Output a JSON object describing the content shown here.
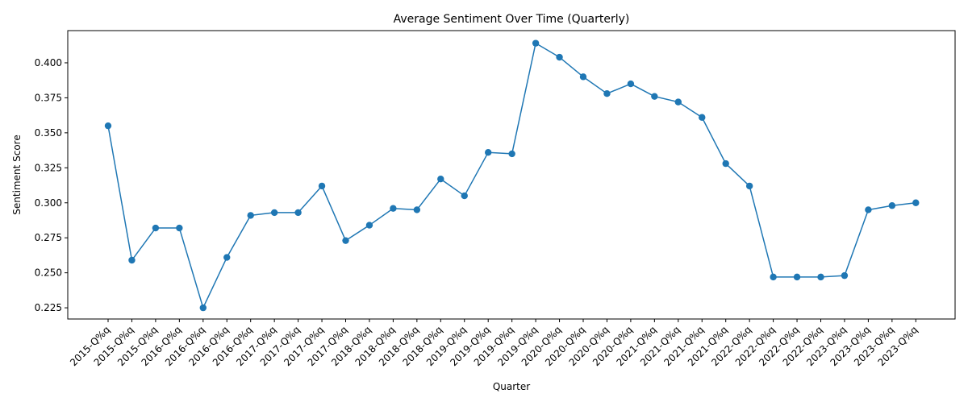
{
  "chart_data": {
    "type": "line",
    "title": "Average Sentiment Over Time (Quarterly)",
    "xlabel": "Quarter",
    "ylabel": "Sentiment Score",
    "categories": [
      "2015-Q%q",
      "2015-Q%q",
      "2015-Q%q",
      "2016-Q%q",
      "2016-Q%q",
      "2016-Q%q",
      "2016-Q%q",
      "2017-Q%q",
      "2017-Q%q",
      "2017-Q%q",
      "2017-Q%q",
      "2018-Q%q",
      "2018-Q%q",
      "2018-Q%q",
      "2018-Q%q",
      "2019-Q%q",
      "2019-Q%q",
      "2019-Q%q",
      "2019-Q%q",
      "2020-Q%q",
      "2020-Q%q",
      "2020-Q%q",
      "2020-Q%q",
      "2021-Q%q",
      "2021-Q%q",
      "2021-Q%q",
      "2021-Q%q",
      "2022-Q%q",
      "2022-Q%q",
      "2022-Q%q",
      "2022-Q%q",
      "2023-Q%q",
      "2023-Q%q",
      "2023-Q%q",
      "2023-Q%q"
    ],
    "series": [
      {
        "values": [
          0.355,
          0.259,
          0.282,
          0.282,
          0.225,
          0.261,
          0.291,
          0.293,
          0.293,
          0.312,
          0.273,
          0.284,
          0.296,
          0.295,
          0.317,
          0.305,
          0.336,
          0.335,
          0.414,
          0.404,
          0.39,
          0.378,
          0.385,
          0.376,
          0.372,
          0.361,
          0.328,
          0.312,
          0.247,
          0.247,
          0.247,
          0.248,
          0.295,
          0.298,
          0.3
        ]
      }
    ],
    "ylim": [
      0.217,
      0.423
    ],
    "yticks": [
      0.225,
      0.25,
      0.275,
      0.3,
      0.325,
      0.35,
      0.375,
      0.4
    ],
    "ytick_labels": [
      "0.225",
      "0.250",
      "0.275",
      "0.300",
      "0.325",
      "0.350",
      "0.375",
      "0.400"
    ],
    "grid": false,
    "legend": "none",
    "colors": {
      "line": "#1f77b4",
      "axes": "#000000",
      "background": "#ffffff"
    }
  }
}
